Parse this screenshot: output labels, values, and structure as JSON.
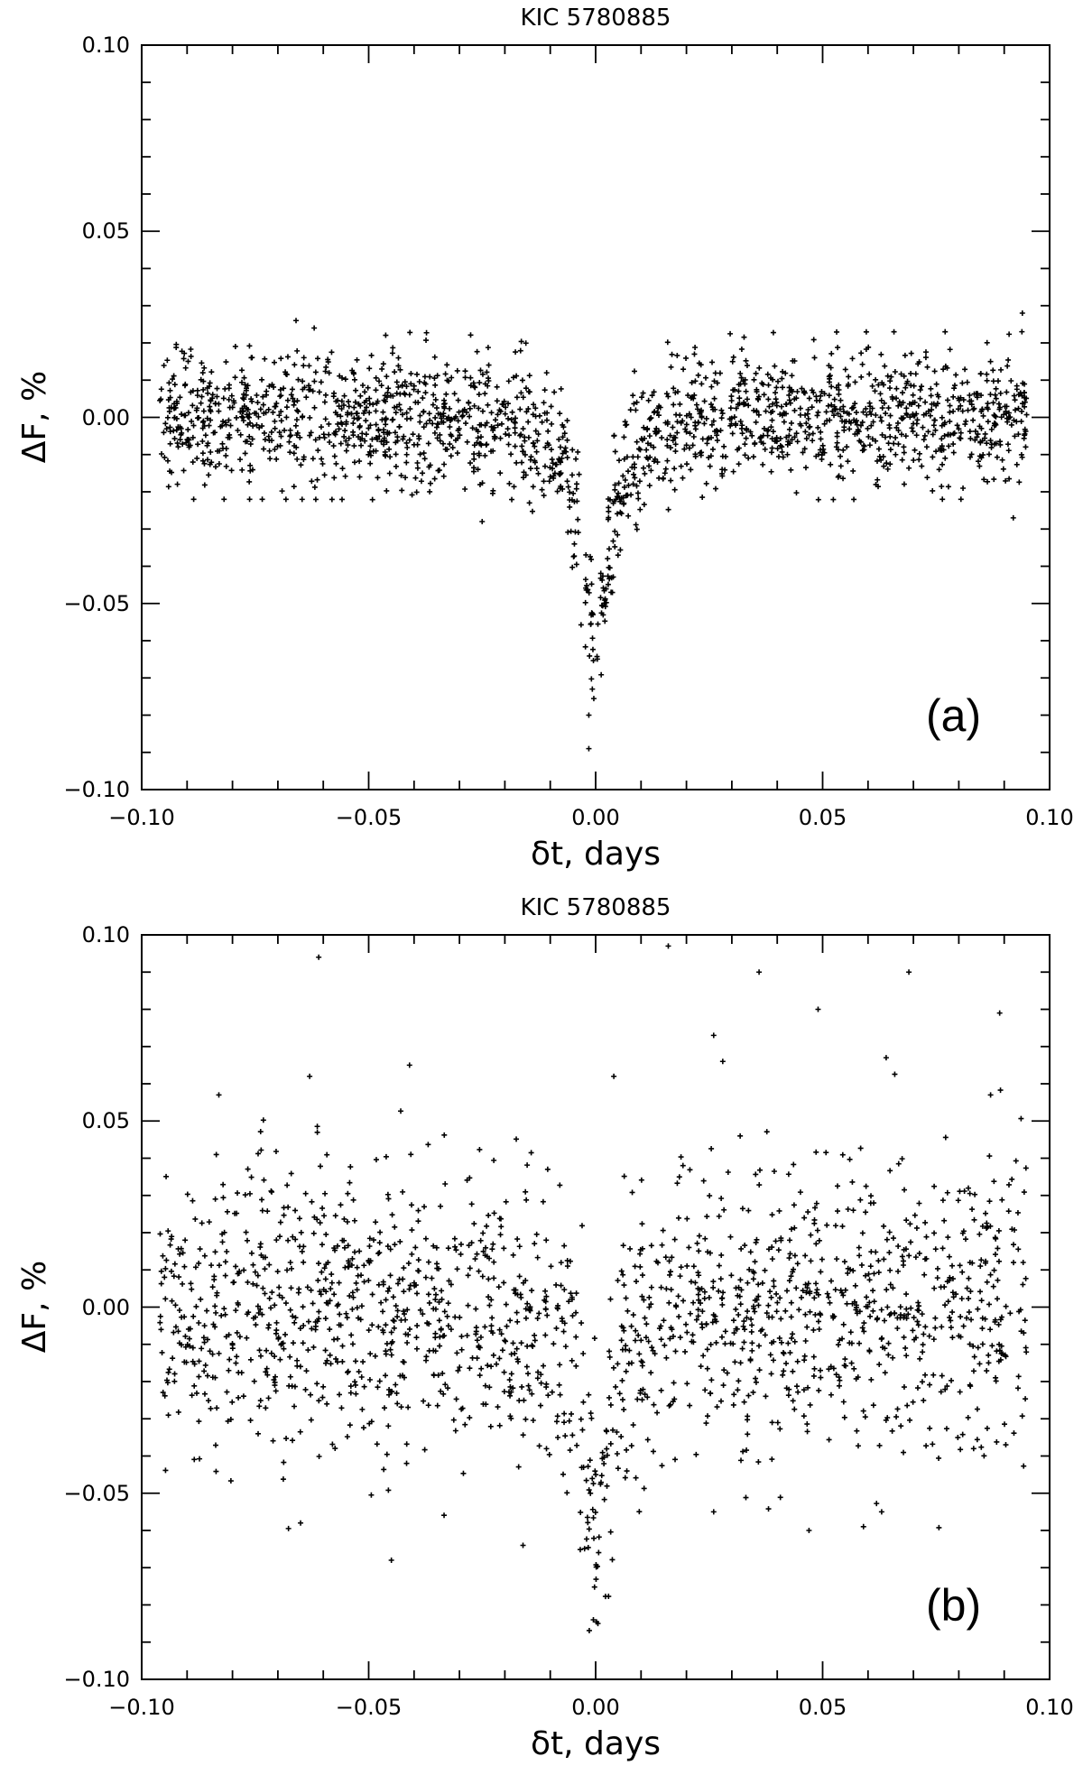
{
  "chart_data": [
    {
      "type": "scatter",
      "title": "KIC 5780885",
      "panel_label": "(a)",
      "xlabel": "δt, days",
      "ylabel": "ΔF, %",
      "xlim": [
        -0.1,
        0.1
      ],
      "ylim": [
        -0.1,
        0.1
      ],
      "xticks": [
        "−0.10",
        "−0.05",
        "0.00",
        "0.05",
        "0.10"
      ],
      "yticks": [
        "0.10",
        "0.05",
        "0.00",
        "−0.05",
        "−0.10"
      ],
      "grid": false,
      "marker": "plus",
      "n_points": 1900,
      "point_x_range": [
        -0.096,
        0.095
      ],
      "baseline_scatter": 0.009,
      "dip": {
        "center": 0.0,
        "depth": -0.065,
        "width": 0.004,
        "min_value": -0.089
      },
      "notable_points": [
        {
          "x": -0.066,
          "y": 0.026
        },
        {
          "x": -0.062,
          "y": 0.024
        },
        {
          "x": 0.094,
          "y": 0.028
        },
        {
          "x": -0.025,
          "y": -0.028
        },
        {
          "x": 0.092,
          "y": -0.027
        },
        {
          "x": -0.0015,
          "y": -0.08
        },
        {
          "x": -0.0015,
          "y": -0.089
        }
      ]
    },
    {
      "type": "scatter",
      "title": "KIC 5780885",
      "panel_label": "(b)",
      "xlabel": "δt, days",
      "ylabel": "ΔF, %",
      "xlim": [
        -0.1,
        0.1
      ],
      "ylim": [
        -0.1,
        0.1
      ],
      "xticks": [
        "−0.10",
        "−0.05",
        "0.00",
        "0.05",
        "0.10"
      ],
      "yticks": [
        "0.10",
        "0.05",
        "0.00",
        "−0.05",
        "−0.10"
      ],
      "grid": false,
      "marker": "plus",
      "n_points": 1750,
      "point_x_range": [
        -0.096,
        0.095
      ],
      "baseline_scatter": 0.019,
      "dip": {
        "center": 0.0,
        "depth": -0.06,
        "width": 0.004,
        "min_value": -0.085
      },
      "notable_points": [
        {
          "x": -0.061,
          "y": 0.094
        },
        {
          "x": 0.016,
          "y": 0.097
        },
        {
          "x": 0.036,
          "y": 0.09
        },
        {
          "x": 0.069,
          "y": 0.09
        },
        {
          "x": 0.049,
          "y": 0.08
        },
        {
          "x": 0.089,
          "y": 0.079
        },
        {
          "x": 0.026,
          "y": 0.073
        },
        {
          "x": 0.028,
          "y": 0.066
        },
        {
          "x": 0.064,
          "y": 0.067
        },
        {
          "x": -0.041,
          "y": 0.065
        },
        {
          "x": 0.004,
          "y": 0.062
        },
        {
          "x": -0.063,
          "y": 0.062
        },
        {
          "x": -0.083,
          "y": 0.057
        },
        {
          "x": 0.087,
          "y": 0.057
        },
        {
          "x": -0.045,
          "y": -0.068
        },
        {
          "x": -0.016,
          "y": -0.064
        },
        {
          "x": -0.065,
          "y": -0.058
        },
        {
          "x": 0.047,
          "y": -0.06
        },
        {
          "x": 0.063,
          "y": -0.055
        },
        {
          "x": 0.026,
          "y": -0.055
        },
        {
          "x": -0.0005,
          "y": -0.084
        },
        {
          "x": 0.0005,
          "y": -0.085
        }
      ]
    }
  ]
}
